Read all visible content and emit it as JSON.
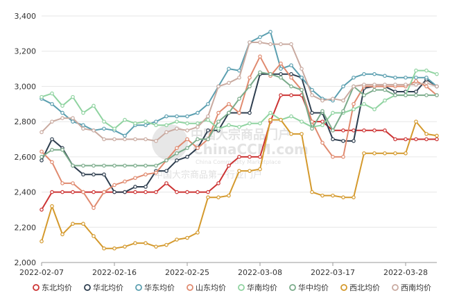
{
  "chart_data": {
    "type": "line",
    "x": [
      "2022-02-07",
      "2022-02-08",
      "2022-02-09",
      "2022-02-10",
      "2022-02-11",
      "2022-02-14",
      "2022-02-15",
      "2022-02-16",
      "2022-02-17",
      "2022-02-18",
      "2022-02-21",
      "2022-02-22",
      "2022-02-23",
      "2022-02-24",
      "2022-02-25",
      "2022-02-28",
      "2022-03-01",
      "2022-03-02",
      "2022-03-03",
      "2022-03-04",
      "2022-03-07",
      "2022-03-08",
      "2022-03-09",
      "2022-03-10",
      "2022-03-11",
      "2022-03-14",
      "2022-03-15",
      "2022-03-16",
      "2022-03-17",
      "2022-03-18",
      "2022-03-21",
      "2022-03-22",
      "2022-03-23",
      "2022-03-24",
      "2022-03-25",
      "2022-03-28",
      "2022-03-29",
      "2022-03-30",
      "2022-03-31"
    ],
    "xticks": [
      "2022-02-07",
      "2022-02-16",
      "2022-02-25",
      "2022-03-08",
      "2022-03-17",
      "2022-03-28"
    ],
    "ylim": [
      2000,
      3400
    ],
    "yticks": [
      2000,
      2200,
      2400,
      2600,
      2800,
      3000,
      3200,
      3400
    ],
    "ytick_labels": [
      "2,000",
      "2,200",
      "2,400",
      "2,600",
      "2,800",
      "3,000",
      "3,200",
      "3,400"
    ],
    "grid": "horizontal",
    "legend_position": "bottom",
    "series": [
      {
        "name": "东北均价",
        "color": "#cc3333",
        "values": [
          2300,
          2400,
          2400,
          2400,
          2400,
          2400,
          2400,
          2400,
          2400,
          2400,
          2400,
          2400,
          2450,
          2400,
          2400,
          2400,
          2400,
          2450,
          2550,
          2600,
          2600,
          2600,
          2800,
          2950,
          2950,
          2950,
          2800,
          2800,
          2750,
          2750,
          2750,
          2750,
          2750,
          2750,
          2700,
          2700,
          2700,
          2700,
          2700
        ]
      },
      {
        "name": "华北均价",
        "color": "#2e3e4f",
        "values": [
          2580,
          2700,
          2650,
          2550,
          2500,
          2500,
          2500,
          2400,
          2400,
          2430,
          2430,
          2520,
          2520,
          2580,
          2600,
          2650,
          2750,
          2750,
          2850,
          2850,
          2850,
          3070,
          3070,
          3070,
          3070,
          3050,
          2850,
          2850,
          2700,
          2690,
          2690,
          2990,
          3000,
          3000,
          2970,
          2970,
          2970,
          3040,
          3000
        ]
      },
      {
        "name": "华东均价",
        "color": "#5b9fb0",
        "values": [
          2930,
          2900,
          2850,
          2800,
          2780,
          2750,
          2760,
          2750,
          2720,
          2780,
          2780,
          2800,
          2830,
          2830,
          2830,
          2850,
          2900,
          3000,
          3100,
          3090,
          3250,
          3280,
          3310,
          3100,
          3120,
          3050,
          2980,
          2930,
          2920,
          3000,
          3050,
          3070,
          3070,
          3060,
          3050,
          3050,
          3050,
          3050,
          3000
        ]
      },
      {
        "name": "山东均价",
        "color": "#e08a6f",
        "values": [
          2630,
          2570,
          2450,
          2450,
          2400,
          2310,
          2400,
          2440,
          2460,
          2480,
          2500,
          2510,
          2580,
          2650,
          2700,
          2650,
          2700,
          2850,
          2900,
          2850,
          3050,
          3170,
          3060,
          3130,
          3050,
          2980,
          2800,
          2680,
          2600,
          2600,
          2900,
          3000,
          3000,
          3000,
          3000,
          3000,
          3030,
          3000,
          2950
        ]
      },
      {
        "name": "华南均价",
        "color": "#8fd3a0",
        "values": [
          2940,
          2960,
          2890,
          2940,
          2850,
          2890,
          2800,
          2760,
          2810,
          2790,
          2800,
          2780,
          2780,
          2800,
          2790,
          2790,
          2810,
          2760,
          2780,
          2770,
          2790,
          2790,
          2850,
          2810,
          2830,
          2800,
          2770,
          2780,
          2850,
          2850,
          2870,
          2900,
          2870,
          2920,
          2950,
          2950,
          3090,
          3090,
          3070
        ]
      },
      {
        "name": "华中均价",
        "color": "#7aab8a",
        "values": [
          2600,
          2640,
          2640,
          2550,
          2550,
          2550,
          2550,
          2550,
          2550,
          2550,
          2550,
          2550,
          2580,
          2620,
          2650,
          2700,
          2700,
          2800,
          2850,
          2930,
          3000,
          3080,
          3070,
          3050,
          3000,
          2980,
          2760,
          2860,
          2750,
          2860,
          3000,
          2950,
          2980,
          2980,
          2950,
          2950,
          2950,
          2950,
          2950
        ]
      },
      {
        "name": "西北均价",
        "color": "#d4992c",
        "values": [
          2120,
          2320,
          2160,
          2220,
          2220,
          2150,
          2080,
          2080,
          2090,
          2110,
          2110,
          2090,
          2100,
          2130,
          2140,
          2170,
          2370,
          2370,
          2380,
          2520,
          2520,
          2530,
          2810,
          2810,
          2730,
          2730,
          2400,
          2380,
          2380,
          2370,
          2370,
          2620,
          2620,
          2620,
          2620,
          2620,
          2800,
          2730,
          2720
        ]
      },
      {
        "name": "西南均价",
        "color": "#c9aaa0",
        "values": [
          2740,
          2800,
          2820,
          2820,
          2760,
          2750,
          2700,
          2700,
          2700,
          2700,
          2700,
          2690,
          2740,
          2760,
          2750,
          2770,
          2830,
          3000,
          3020,
          3050,
          3250,
          3250,
          3240,
          3240,
          3240,
          3100,
          2950,
          2920,
          2930,
          2920,
          3000,
          3010,
          3010,
          3010,
          3010,
          3010,
          3010,
          3020,
          3000
        ]
      }
    ]
  },
  "watermark": {
    "brand": "ChinaCCM.com",
    "chinese_brand": "中国大宗商品门户",
    "tagline": "China Commodity Marketplace",
    "subtitle": "中国大宗商品第一行业门户"
  }
}
